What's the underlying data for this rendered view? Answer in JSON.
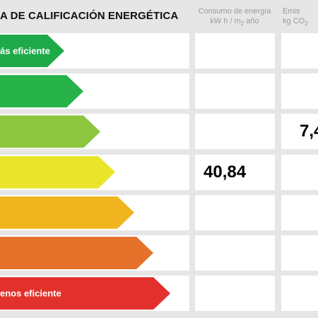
{
  "title": "A DE CALIFICACIÓN ENERGÉTICA",
  "columns": {
    "consumo": {
      "line1": "Consumo de energía",
      "line2_pre": "kW h / m",
      "line2_sub": "2",
      "line2_post": " año"
    },
    "emisiones": {
      "line1": "Emis",
      "line2_pre": "kg CO",
      "line2_sub": "2"
    }
  },
  "rows": [
    {
      "label": "ás eficiente",
      "color": "#1faa4a",
      "fill": 0.34,
      "consumo": "",
      "emisiones": ""
    },
    {
      "label": "",
      "color": "#27b34a",
      "fill": 0.44,
      "consumo": "",
      "emisiones": ""
    },
    {
      "label": "",
      "color": "#8cc63f",
      "fill": 0.53,
      "consumo": "",
      "emisiones": "7,4"
    },
    {
      "label": "",
      "color": "#eae52a",
      "fill": 0.61,
      "consumo": "40,84",
      "emisiones": ""
    },
    {
      "label": "",
      "color": "#f0b51e",
      "fill": 0.71,
      "consumo": "",
      "emisiones": ""
    },
    {
      "label": "",
      "color": "#e5712b",
      "fill": 0.81,
      "consumo": "",
      "emisiones": ""
    },
    {
      "label": "enos eficiente",
      "color": "#e2312c",
      "fill": 0.9,
      "consumo": "",
      "emisiones": ""
    }
  ]
}
